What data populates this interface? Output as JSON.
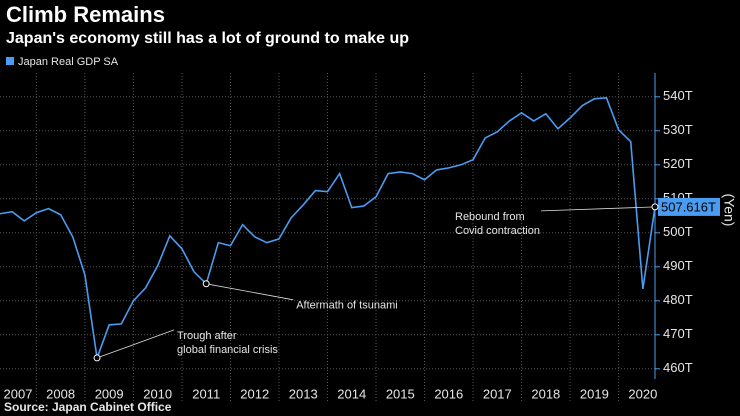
{
  "chart_data": {
    "type": "line",
    "title": "Climb Remains",
    "subtitle": "Japan's economy still has a lot of ground to make up",
    "y_axis_label": "(Yen)",
    "source": "Source: Japan Cabinet Office",
    "x": [
      2007.25,
      2007.5,
      2007.75,
      2008,
      2008.25,
      2008.5,
      2008.75,
      2009,
      2009.25,
      2009.5,
      2009.75,
      2010,
      2010.25,
      2010.5,
      2010.75,
      2011,
      2011.25,
      2011.5,
      2011.75,
      2012,
      2012.25,
      2012.5,
      2012.75,
      2013,
      2013.25,
      2013.5,
      2013.75,
      2014,
      2014.25,
      2014.5,
      2014.75,
      2015,
      2015.25,
      2015.5,
      2015.75,
      2016,
      2016.25,
      2016.5,
      2016.75,
      2017,
      2017.25,
      2017.5,
      2017.75,
      2018,
      2018.25,
      2018.5,
      2018.75,
      2019,
      2019.25,
      2019.5,
      2019.75,
      2020,
      2020.25,
      2020.5,
      2020.75
    ],
    "series": [
      {
        "name": "Japan Real GDP SA",
        "color": "#4a9cf0",
        "values": [
          505.6,
          506.2,
          503.5,
          505.9,
          507.1,
          505.3,
          498.8,
          487.6,
          463.2,
          472.9,
          473.2,
          480.0,
          483.8,
          490.3,
          499.1,
          495.3,
          488.5,
          485.0,
          497.1,
          496.2,
          502.4,
          498.8,
          497.1,
          498.2,
          504.4,
          508.2,
          512.4,
          512.1,
          517.4,
          507.4,
          507.9,
          510.6,
          517.4,
          517.9,
          517.4,
          515.6,
          518.5,
          519.1,
          520.0,
          521.5,
          527.9,
          529.7,
          532.9,
          535.3,
          532.9,
          535.0,
          530.6,
          533.8,
          537.4,
          539.4,
          539.7,
          530.3,
          526.8,
          483.5,
          507.616
        ],
        "value_labels": [
          null,
          null,
          null,
          null,
          null,
          null,
          null,
          null,
          null,
          null,
          null,
          null,
          null,
          null,
          null,
          null,
          null,
          null,
          null,
          null,
          null,
          null,
          null,
          null,
          null,
          null,
          null,
          null,
          null,
          null,
          null,
          null,
          null,
          null,
          null,
          null,
          null,
          null,
          null,
          null,
          null,
          null,
          null,
          null,
          null,
          null,
          null,
          null,
          null,
          null,
          null,
          null,
          null,
          null,
          "507.616T"
        ]
      }
    ],
    "annotations": [
      {
        "lines": [
          "Trough after",
          "global financial crisis"
        ],
        "point": 8
      },
      {
        "lines": [
          "Aftermath of tsunami"
        ],
        "point": 17
      },
      {
        "lines": [
          "Rebound from",
          "Covid contraction"
        ],
        "point": 54
      }
    ],
    "xlim": [
      2007.25,
      2020.75
    ],
    "xticks": [
      2007,
      2008,
      2009,
      2010,
      2011,
      2012,
      2013,
      2014,
      2015,
      2016,
      2017,
      2018,
      2019,
      2020
    ],
    "ylim": [
      457,
      547
    ],
    "yticks": [
      {
        "value": 460,
        "label": "460T"
      },
      {
        "value": 470,
        "label": "470T"
      },
      {
        "value": 480,
        "label": "480T"
      },
      {
        "value": 490,
        "label": "490T"
      },
      {
        "value": 500,
        "label": "500T"
      },
      {
        "value": 510,
        "label": "510T"
      },
      {
        "value": 520,
        "label": "520T"
      },
      {
        "value": 530,
        "label": "530T"
      },
      {
        "value": 540,
        "label": "540T"
      }
    ],
    "grid": true
  }
}
